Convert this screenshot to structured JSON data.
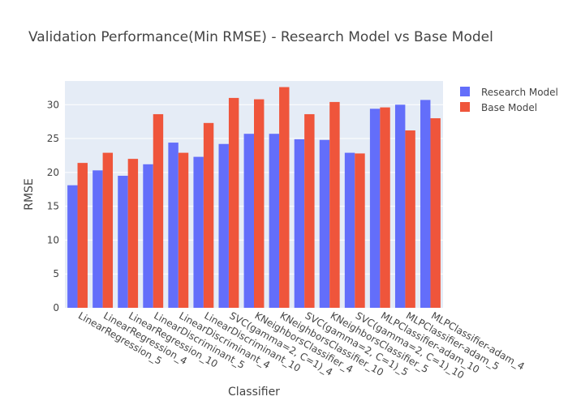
{
  "chart_data": {
    "type": "bar",
    "title": "Validation Performance(Min RMSE) - Research Model vs Base Model",
    "xlabel": "Classifier",
    "ylabel": "RMSE",
    "ylim": [
      0,
      33.5
    ],
    "yticks": [
      0,
      5,
      10,
      15,
      20,
      25,
      30
    ],
    "grid": true,
    "legend_position": "top-right",
    "categories": [
      "LinearRegression_5",
      "LinearRegression_4",
      "LinearRegression_10",
      "LinearDiscriminant_5",
      "LinearDiscriminant_4",
      "LinearDiscriminant_10",
      "SVC(gamma=2, C=1)_4",
      "KNeighborsClassifier_4",
      "KNeighborsClassifier_10",
      "SVC(gamma=2, C=1)_5",
      "KNeighborsClassifier_5",
      "SVC(gamma=2, C=1)_10",
      "MLPClassifier-adam_10",
      "MLPClassifier-adam_5",
      "MLPClassifier-adam_4"
    ],
    "series": [
      {
        "name": "Research Model",
        "color": "#636efa",
        "values": [
          18.1,
          20.3,
          19.5,
          21.2,
          24.4,
          22.3,
          24.2,
          25.7,
          25.7,
          24.9,
          24.8,
          22.9,
          29.4,
          30.0,
          30.7
        ]
      },
      {
        "name": "Base Model",
        "color": "#ef553b",
        "values": [
          21.4,
          22.9,
          22.0,
          28.6,
          22.9,
          27.3,
          31.0,
          30.8,
          32.6,
          28.6,
          30.4,
          22.8,
          29.6,
          26.2,
          28.0
        ]
      }
    ]
  },
  "colors": {
    "plot_background": "#e5ecf6",
    "grid": "#ffffff",
    "text": "#444444"
  }
}
